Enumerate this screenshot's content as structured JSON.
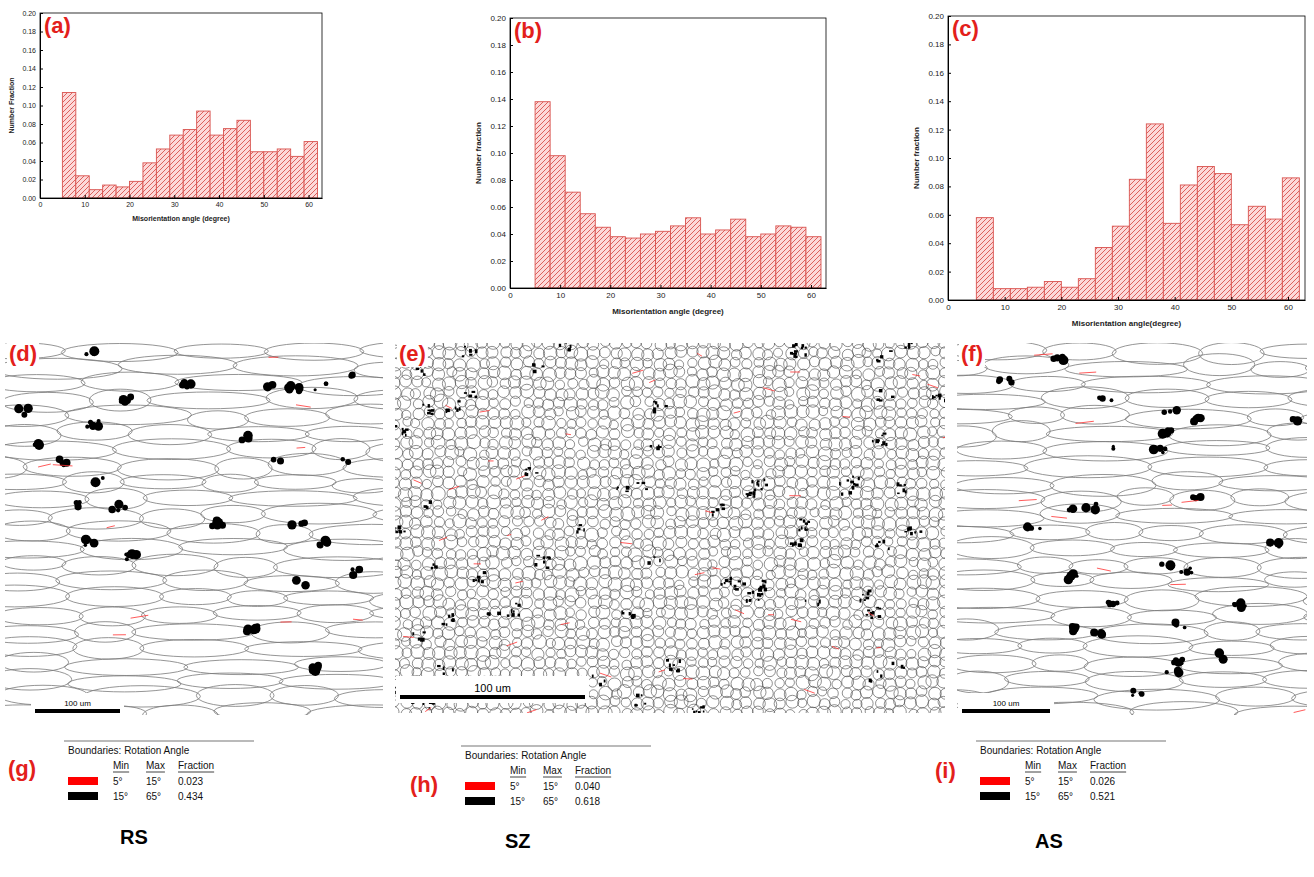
{
  "chart_data": [
    {
      "type": "histogram",
      "title": "(a)",
      "xlabel": "Misorientation angle (degree)",
      "ylabel": "Number Fraction",
      "bins": [
        5,
        8,
        11,
        14,
        17,
        20,
        23,
        26,
        29,
        32,
        35,
        38,
        41,
        44,
        47,
        50,
        53,
        56,
        59,
        62
      ],
      "values": [
        0.114,
        0.024,
        0.009,
        0.014,
        0.012,
        0.018,
        0.038,
        0.053,
        0.068,
        0.074,
        0.094,
        0.068,
        0.075,
        0.084,
        0.05,
        0.05,
        0.053,
        0.045,
        0.061
      ],
      "color": "#d9534f",
      "xlim": [
        0,
        63
      ],
      "xticks": [
        0,
        10,
        20,
        30,
        40,
        50,
        60
      ],
      "ylim": [
        0,
        0.2
      ],
      "yticks": [
        {
          "value": 0,
          "label": "0.00"
        },
        {
          "value": 0.02,
          "label": "0.02"
        },
        {
          "value": 0.04,
          "label": "0.04"
        },
        {
          "value": 0.06,
          "label": "0.06"
        },
        {
          "value": 0.08,
          "label": "0.08"
        },
        {
          "value": 0.1,
          "label": "0.10"
        },
        {
          "value": 0.12,
          "label": "0.12"
        },
        {
          "value": 0.14,
          "label": "0.14"
        },
        {
          "value": 0.16,
          "label": "0.16"
        },
        {
          "value": 0.18,
          "label": "0.18"
        },
        {
          "value": 0.2,
          "label": "0.20"
        }
      ],
      "grid": false
    },
    {
      "type": "histogram",
      "title": "(b)",
      "xlabel": "Misorientation angle (degree)",
      "ylabel": "Number fraction",
      "bins": [
        5,
        8,
        11,
        14,
        17,
        20,
        23,
        26,
        29,
        32,
        35,
        38,
        41,
        44,
        47,
        50,
        53,
        56,
        59,
        62
      ],
      "values": [
        0.138,
        0.098,
        0.071,
        0.055,
        0.045,
        0.038,
        0.037,
        0.04,
        0.042,
        0.046,
        0.052,
        0.04,
        0.043,
        0.051,
        0.038,
        0.04,
        0.046,
        0.045,
        0.038
      ],
      "color": "#d9534f",
      "xlim": [
        0,
        63
      ],
      "xticks": [
        0,
        10,
        20,
        30,
        40,
        50,
        60
      ],
      "ylim": [
        0,
        0.2
      ],
      "yticks": [
        {
          "value": 0,
          "label": "0.00"
        },
        {
          "value": 0.02,
          "label": "0.02"
        },
        {
          "value": 0.04,
          "label": "0.04"
        },
        {
          "value": 0.06,
          "label": "0.06"
        },
        {
          "value": 0.08,
          "label": "0.08"
        },
        {
          "value": 0.1,
          "label": "0.10"
        },
        {
          "value": 0.12,
          "label": "0.12"
        },
        {
          "value": 0.14,
          "label": "0.14"
        },
        {
          "value": 0.16,
          "label": "0.16"
        },
        {
          "value": 0.18,
          "label": "0.18"
        },
        {
          "value": 0.2,
          "label": "0.20"
        }
      ],
      "grid": false
    },
    {
      "type": "histogram",
      "title": "(c)",
      "xlabel": "Misorientation angle(degree)",
      "ylabel": "Number fraction",
      "bins": [
        5,
        8,
        11,
        14,
        17,
        20,
        23,
        26,
        29,
        32,
        35,
        38,
        41,
        44,
        47,
        50,
        53,
        56,
        59,
        62
      ],
      "values": [
        0.058,
        0.008,
        0.008,
        0.009,
        0.013,
        0.009,
        0.015,
        0.037,
        0.052,
        0.085,
        0.124,
        0.054,
        0.081,
        0.094,
        0.089,
        0.053,
        0.066,
        0.057,
        0.086
      ],
      "color": "#d9534f",
      "xlim": [
        0,
        63
      ],
      "xticks": [
        0,
        10,
        20,
        30,
        40,
        50,
        60
      ],
      "ylim": [
        0,
        0.2
      ],
      "yticks": [
        {
          "value": 0,
          "label": "0.00"
        },
        {
          "value": 0.02,
          "label": "0.02"
        },
        {
          "value": 0.04,
          "label": "0.04"
        },
        {
          "value": 0.06,
          "label": "0.06"
        },
        {
          "value": 0.08,
          "label": "0.08"
        },
        {
          "value": 0.1,
          "label": "0.10"
        },
        {
          "value": 0.12,
          "label": "0.12"
        },
        {
          "value": 0.14,
          "label": "0.14"
        },
        {
          "value": 0.16,
          "label": "0.16"
        },
        {
          "value": 0.18,
          "label": "0.18"
        },
        {
          "value": 0.2,
          "label": "0.20"
        }
      ],
      "grid": false
    }
  ],
  "maps": [
    {
      "label": "(d)",
      "scale_bar": "100 um"
    },
    {
      "label": "(e)",
      "scale_bar": "100 um"
    },
    {
      "label": "(f)",
      "scale_bar": "100 um"
    }
  ],
  "legends": [
    {
      "label": "(g)",
      "title": "Boundaries: Rotation Angle",
      "columns": [
        "Min",
        "Max",
        "Fraction"
      ],
      "rows": [
        {
          "color": "#ff0000",
          "cells": [
            "5°",
            "15°",
            "0.023"
          ]
        },
        {
          "color": "#000000",
          "cells": [
            "15°",
            "65°",
            "0.434"
          ]
        }
      ],
      "zone": "RS"
    },
    {
      "label": "(h)",
      "title": "Boundaries: Rotation Angle",
      "columns": [
        "Min",
        "Max",
        "Fraction"
      ],
      "rows": [
        {
          "color": "#ff0000",
          "cells": [
            "5°",
            "15°",
            "0.040"
          ]
        },
        {
          "color": "#000000",
          "cells": [
            "15°",
            "65°",
            "0.618"
          ]
        }
      ],
      "zone": "SZ"
    },
    {
      "label": "(i)",
      "title": "Boundaries: Rotation Angle",
      "columns": [
        "Min",
        "Max",
        "Fraction"
      ],
      "rows": [
        {
          "color": "#ff0000",
          "cells": [
            "5°",
            "15°",
            "0.026"
          ]
        },
        {
          "color": "#000000",
          "cells": [
            "15°",
            "65°",
            "0.521"
          ]
        }
      ],
      "zone": "AS"
    }
  ]
}
